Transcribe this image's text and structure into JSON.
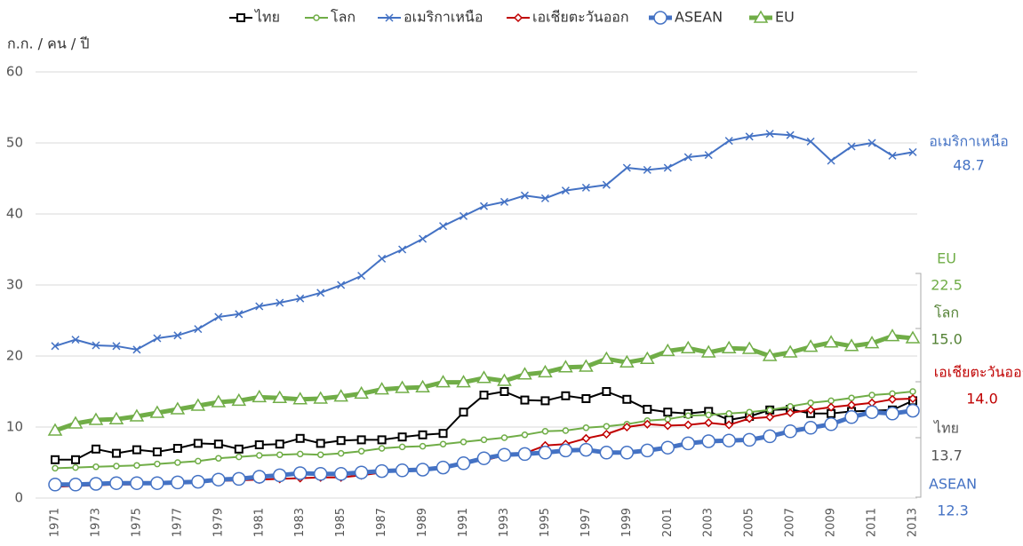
{
  "chart_data": {
    "type": "line",
    "y_label": "ก.ก. / คน / ปี",
    "x": [
      1971,
      1972,
      1973,
      1974,
      1975,
      1976,
      1977,
      1978,
      1979,
      1980,
      1981,
      1982,
      1983,
      1984,
      1985,
      1986,
      1987,
      1988,
      1989,
      1990,
      1991,
      1992,
      1993,
      1994,
      1995,
      1996,
      1997,
      1998,
      1999,
      2000,
      2001,
      2002,
      2003,
      2004,
      2005,
      2006,
      2007,
      2008,
      2009,
      2010,
      2011,
      2012,
      2013
    ],
    "xlim": [
      1971,
      2013
    ],
    "xticks": [
      1971,
      1973,
      1975,
      1977,
      1979,
      1981,
      1983,
      1985,
      1987,
      1989,
      1991,
      1993,
      1995,
      1997,
      1999,
      2001,
      2003,
      2005,
      2007,
      2009,
      2011,
      2013
    ],
    "ylim": [
      0,
      60
    ],
    "yticks": [
      0,
      10,
      20,
      30,
      40,
      50,
      60
    ],
    "grid": true,
    "legend": "top",
    "series": [
      {
        "name": "ไทย",
        "color": "#000000",
        "marker": "square",
        "width": 2,
        "end_label": "13.7",
        "values": [
          5.4,
          5.4,
          6.9,
          6.3,
          6.8,
          6.5,
          7.0,
          7.7,
          7.6,
          6.9,
          7.5,
          7.6,
          8.4,
          7.7,
          8.1,
          8.2,
          8.2,
          8.6,
          8.9,
          9.1,
          12.1,
          14.5,
          15.0,
          13.8,
          13.7,
          14.4,
          14.0,
          15.0,
          13.9,
          12.5,
          12.1,
          11.9,
          12.2,
          11.0,
          11.5,
          12.4,
          12.5,
          11.9,
          11.9,
          12.2,
          12.3,
          12.4,
          13.7
        ]
      },
      {
        "name": "โลก",
        "color": "#70ad47",
        "marker": "circle",
        "width": 2,
        "end_label": "15.0",
        "values": [
          4.2,
          4.3,
          4.4,
          4.5,
          4.6,
          4.8,
          5.0,
          5.2,
          5.6,
          5.8,
          6.0,
          6.1,
          6.2,
          6.1,
          6.3,
          6.6,
          7.0,
          7.2,
          7.3,
          7.6,
          7.9,
          8.2,
          8.5,
          8.9,
          9.4,
          9.5,
          9.9,
          10.1,
          10.4,
          10.9,
          11.1,
          11.6,
          11.7,
          11.9,
          12.1,
          12.4,
          12.9,
          13.4,
          13.7,
          14.1,
          14.5,
          14.7,
          15.0
        ]
      },
      {
        "name": "อเมริกาเหนือ",
        "color": "#4472c4",
        "marker": "x",
        "width": 2,
        "end_label": "48.7",
        "values": [
          21.4,
          22.3,
          21.5,
          21.4,
          20.9,
          22.5,
          22.9,
          23.8,
          25.5,
          25.9,
          27.0,
          27.5,
          28.1,
          28.9,
          30.0,
          31.3,
          33.7,
          35.0,
          36.5,
          38.3,
          39.7,
          41.1,
          41.7,
          42.6,
          42.2,
          43.3,
          43.7,
          44.1,
          46.5,
          46.2,
          46.5,
          48.0,
          48.3,
          50.3,
          50.9,
          51.3,
          51.1,
          50.2,
          47.5,
          49.5,
          50.0,
          48.2,
          48.7
        ]
      },
      {
        "name": "เอเชียตะวันออก",
        "color": "#c00000",
        "marker": "diamond",
        "width": 2,
        "end_label": "14.0",
        "values": [
          1.6,
          1.7,
          1.8,
          1.9,
          1.9,
          2.0,
          2.1,
          2.2,
          2.4,
          2.5,
          2.6,
          2.7,
          2.8,
          2.9,
          2.9,
          3.2,
          3.6,
          4.0,
          4.1,
          4.4,
          5.0,
          5.3,
          6.0,
          6.3,
          7.4,
          7.6,
          8.4,
          9.0,
          10.0,
          10.4,
          10.2,
          10.3,
          10.6,
          10.3,
          11.2,
          11.4,
          12.0,
          12.4,
          12.8,
          13.1,
          13.4,
          13.9,
          14.0
        ]
      },
      {
        "name": "ASEAN",
        "color": "#4472c4",
        "marker": "bigcircle",
        "width": 5,
        "end_label": "12.3",
        "values": [
          1.9,
          1.9,
          2.0,
          2.1,
          2.1,
          2.1,
          2.2,
          2.3,
          2.6,
          2.7,
          3.0,
          3.2,
          3.5,
          3.4,
          3.4,
          3.6,
          3.8,
          3.9,
          4.0,
          4.3,
          4.9,
          5.6,
          6.1,
          6.2,
          6.4,
          6.7,
          6.8,
          6.4,
          6.4,
          6.7,
          7.1,
          7.7,
          8.0,
          8.1,
          8.2,
          8.7,
          9.4,
          9.9,
          10.4,
          11.4,
          12.1,
          11.9,
          12.3
        ]
      },
      {
        "name": "EU",
        "color": "#70ad47",
        "marker": "triangle",
        "width": 5,
        "end_label": "22.5",
        "values": [
          9.5,
          10.5,
          11.0,
          11.1,
          11.5,
          12.0,
          12.5,
          13.0,
          13.5,
          13.7,
          14.2,
          14.1,
          13.9,
          14.0,
          14.3,
          14.7,
          15.3,
          15.5,
          15.6,
          16.3,
          16.3,
          16.9,
          16.5,
          17.4,
          17.7,
          18.4,
          18.5,
          19.6,
          19.1,
          19.6,
          20.7,
          21.1,
          20.5,
          21.1,
          21.0,
          20.0,
          20.5,
          21.3,
          21.9,
          21.4,
          21.8,
          22.8,
          22.5
        ]
      }
    ]
  }
}
